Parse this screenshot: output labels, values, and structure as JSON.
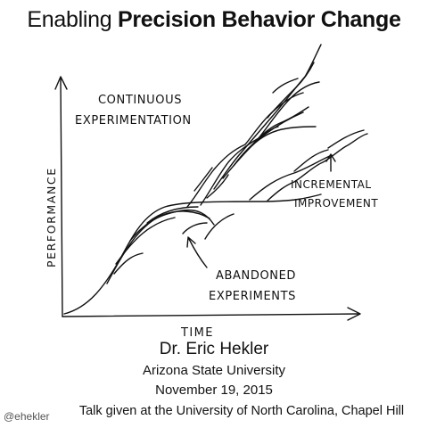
{
  "slide": {
    "title_regular": "Enabling",
    "title_bold": "Precision Behavior Change",
    "speaker": "Dr. Eric Hekler",
    "affiliation": "Arizona State University",
    "date": "November 19, 2015",
    "talk": "Talk given at the University of North Carolina, Chapel Hill",
    "handle": "@ehekler"
  },
  "sketch": {
    "y_axis_label": "PERFORMANCE",
    "x_axis_label": "TIME",
    "annotation_top_line1": "CONTINUOUS",
    "annotation_top_line2": "EXPERIMENTATION",
    "annotation_right_line1": "INCREMENTAL",
    "annotation_right_line2": "IMPROVEMENT",
    "annotation_bottom_line1": "ABANDONED",
    "annotation_bottom_line2": "EXPERIMENTS"
  }
}
